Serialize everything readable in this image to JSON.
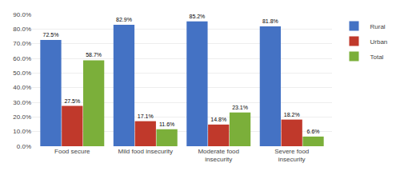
{
  "chart_data": {
    "type": "bar",
    "categories": [
      "Food secure",
      "Mild food insecurity",
      "Moderate food\ninsecurity",
      "Severe food\ninsecurity"
    ],
    "series": [
      {
        "name": "Rural",
        "color": "#4472C4",
        "values": [
          72.5,
          82.9,
          85.2,
          81.8
        ],
        "value_labels": [
          "72.5%",
          "82.9%",
          "85.2%",
          "81.8%"
        ]
      },
      {
        "name": "Urban",
        "color": "#C0392B",
        "values": [
          27.5,
          17.1,
          14.8,
          18.2
        ],
        "value_labels": [
          "27.5%",
          "17.1%",
          "14.8%",
          "18.2%"
        ]
      },
      {
        "name": "Total",
        "color": "#7BAF3A",
        "values": [
          58.7,
          11.6,
          23.1,
          6.6
        ],
        "value_labels": [
          "58.7%",
          "11.6%",
          "23.1%",
          "6.6%"
        ]
      }
    ],
    "ylim": [
      0,
      90
    ],
    "yticks": [
      {
        "value": 0,
        "label": "0.0%"
      },
      {
        "value": 10,
        "label": "10.0%"
      },
      {
        "value": 20,
        "label": "20.0%"
      },
      {
        "value": 30,
        "label": "30.0%"
      },
      {
        "value": 40,
        "label": "40.0%"
      },
      {
        "value": 50,
        "label": "50.0%"
      },
      {
        "value": 60,
        "label": "60.0%"
      },
      {
        "value": 70,
        "label": "70.0%"
      },
      {
        "value": 80,
        "label": "80.0%"
      },
      {
        "value": 90,
        "label": "90.0%"
      }
    ],
    "grid": true,
    "legend": "upper right",
    "data_labels": true
  }
}
